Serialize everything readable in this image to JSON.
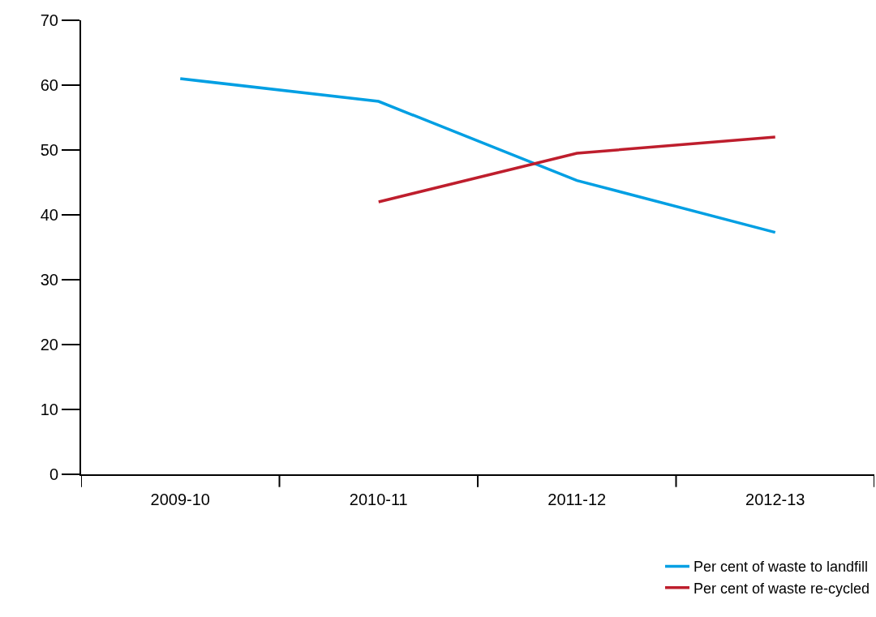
{
  "chart_data": {
    "type": "line",
    "categories": [
      "2009-10",
      "2010-11",
      "2011-12",
      "2012-13"
    ],
    "series": [
      {
        "name": "Per cent of waste to landfill",
        "color": "#009fe3",
        "values": [
          61,
          57.5,
          45.3,
          37.3
        ]
      },
      {
        "name": "Per cent of waste re-cycled",
        "color": "#be1e2d",
        "values": [
          null,
          42,
          49.5,
          52
        ]
      }
    ],
    "ylim": [
      0,
      70
    ],
    "yticks": [
      0,
      10,
      20,
      30,
      40,
      50,
      60,
      70
    ],
    "grid": false,
    "legend": "bottom right",
    "marker": "none",
    "line_style": "solid"
  }
}
